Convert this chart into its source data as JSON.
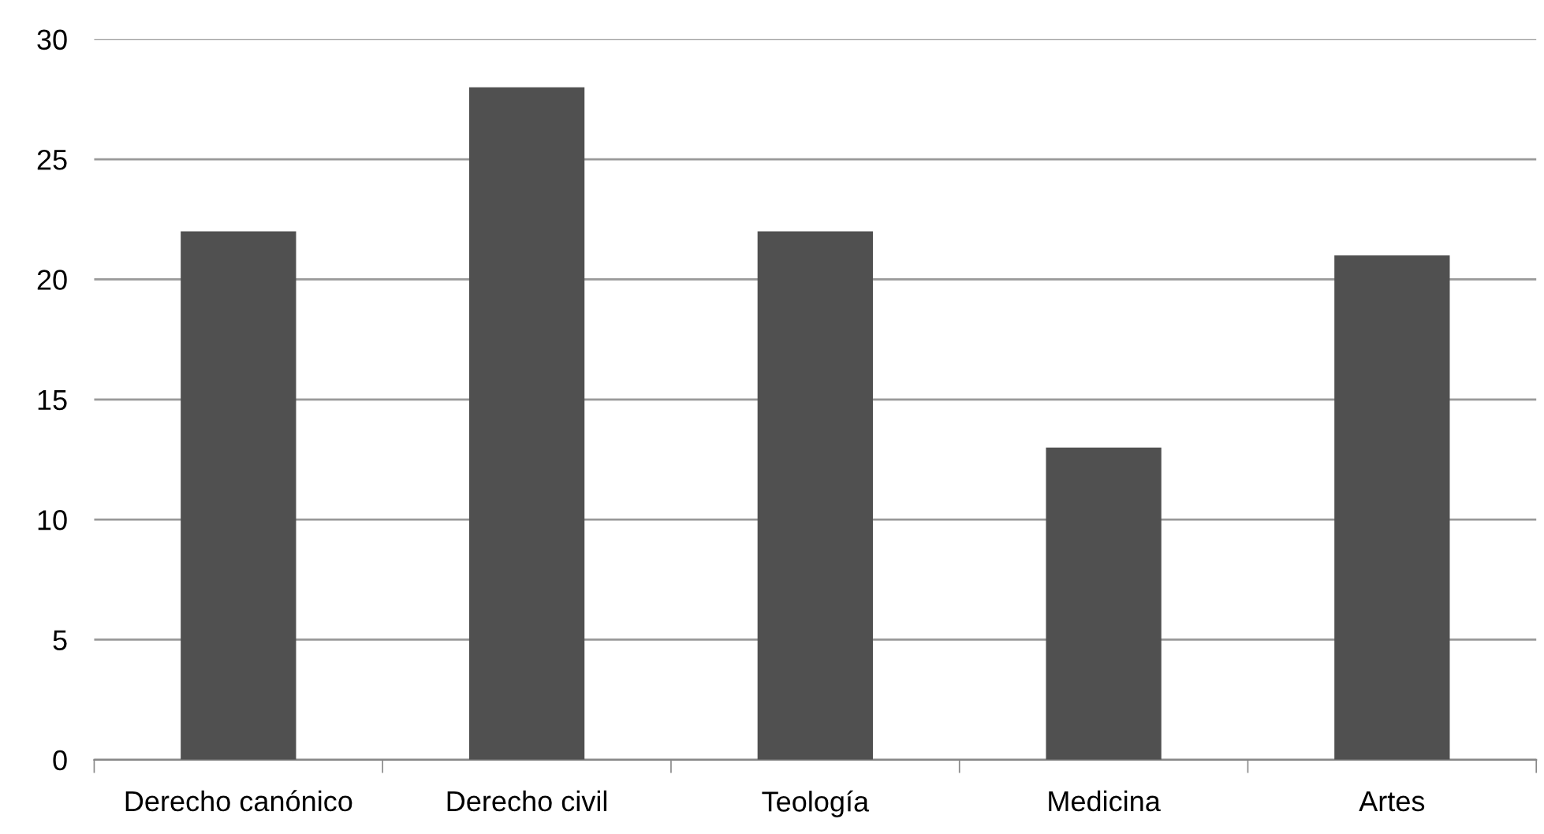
{
  "chart_data": {
    "type": "bar",
    "categories": [
      "Derecho canónico",
      "Derecho civil",
      "Teología",
      "Medicina",
      "Artes"
    ],
    "values": [
      22,
      28,
      22,
      13,
      21
    ],
    "color": "#505050",
    "ylim": [
      0,
      30
    ],
    "yticks": [
      0,
      5,
      10,
      15,
      20,
      25,
      30
    ],
    "grid": "y",
    "legend": false
  }
}
